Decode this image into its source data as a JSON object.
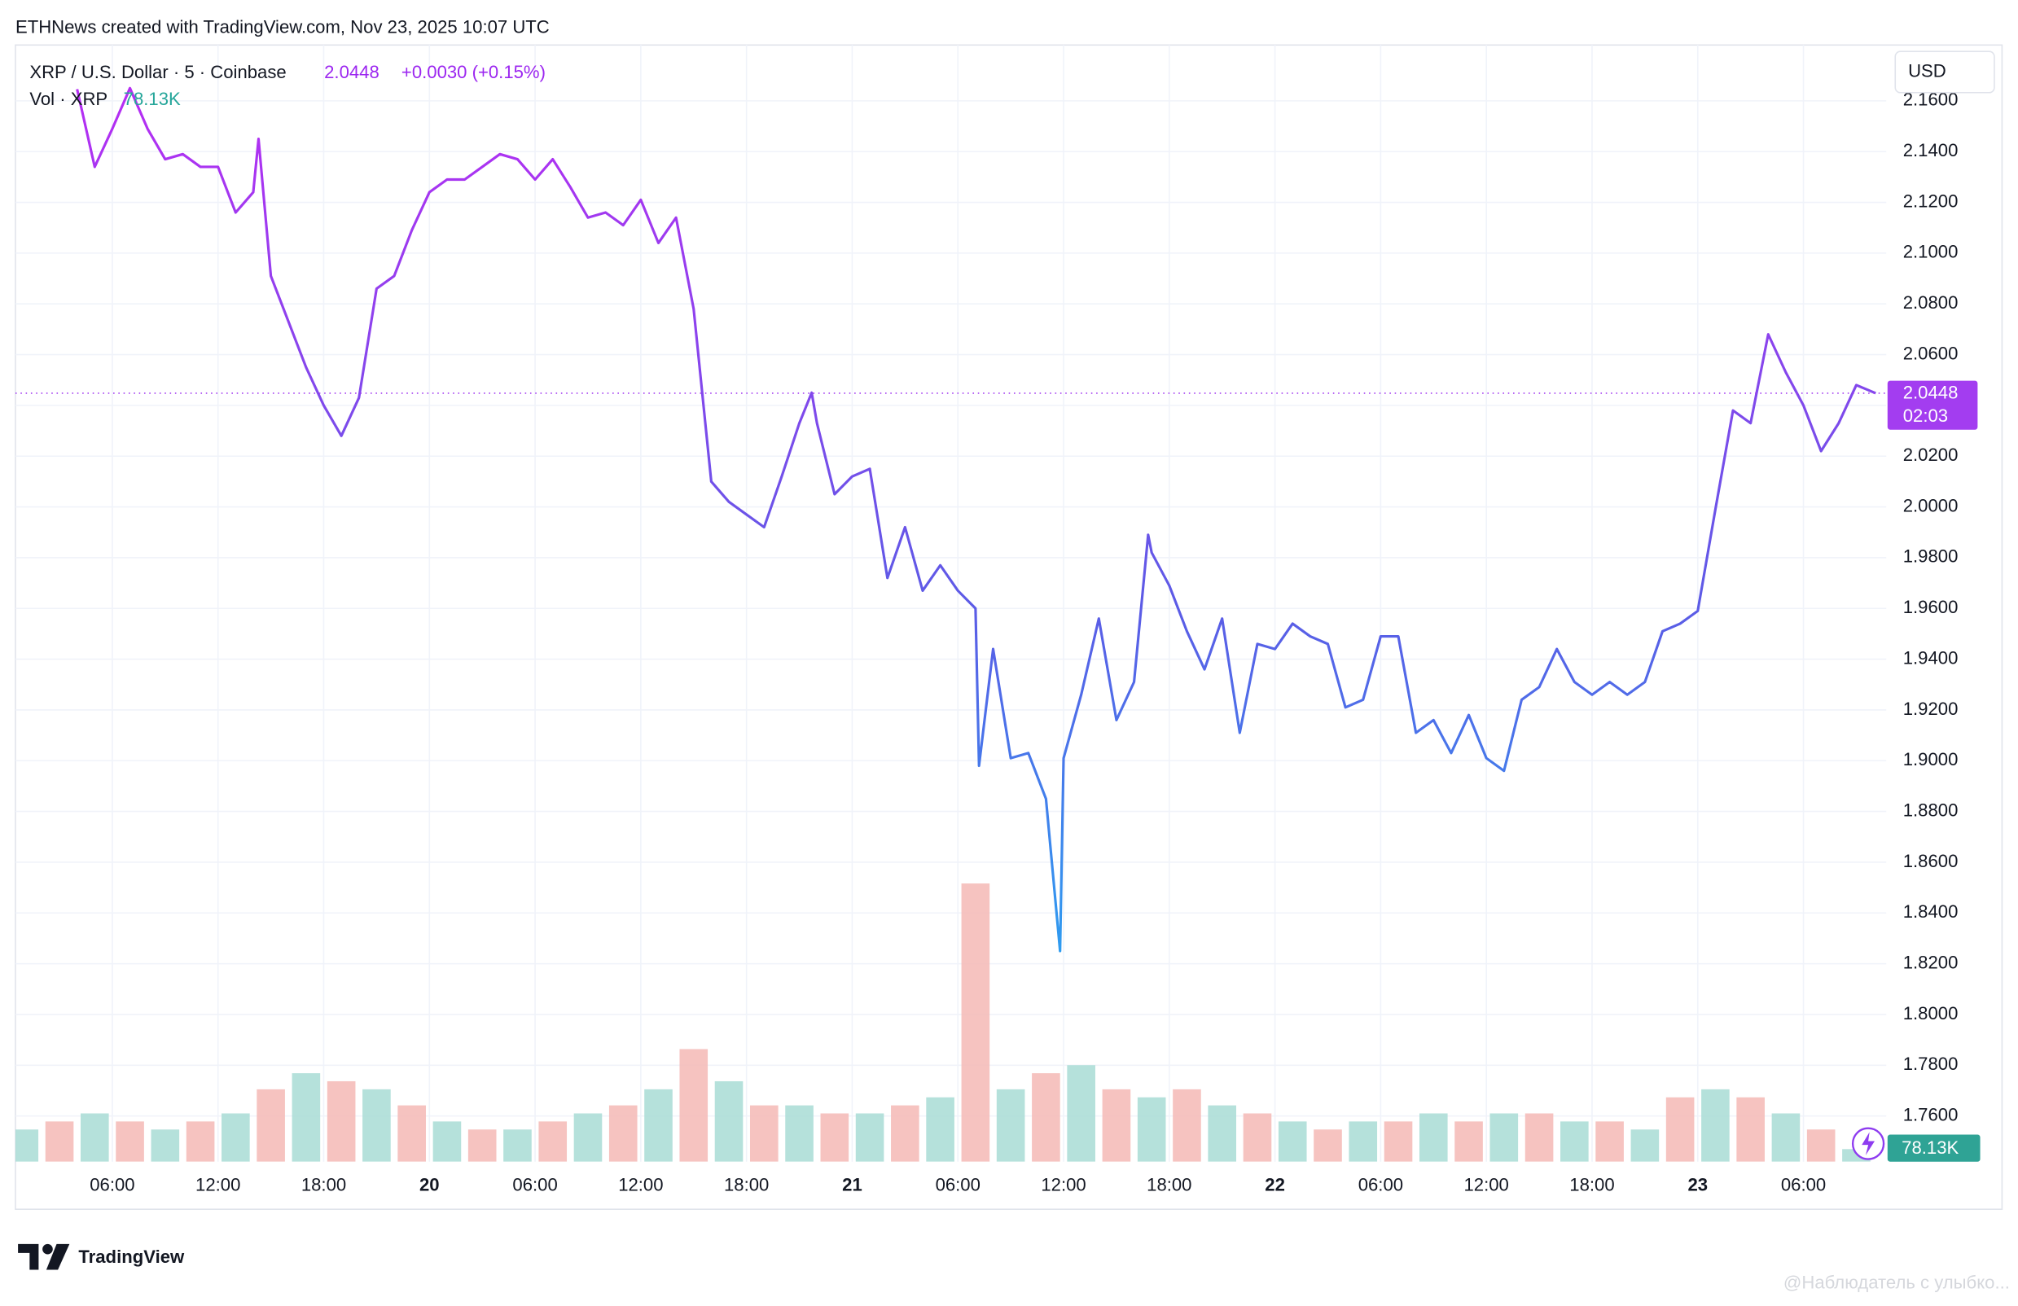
{
  "chart_data": {
    "type": "line",
    "header": "ETHNews created with TradingView.com, Nov 23, 2025 10:07 UTC",
    "price_display": "2.0448",
    "change": "+0.0030 (+0.15%)",
    "currency": "USD",
    "countdown": "02:03",
    "volume_display": "78.13K",
    "brand": "TradingView",
    "watermark": "@Наблюдатель с улыбко...",
    "last_price": 2.0448,
    "line_colors": [
      "#b52ef3",
      "#5b5ce6",
      "#2e9cf0"
    ],
    "series": [
      {
        "name": "XRP / U.S. Dollar · 5 · Coinbase",
        "x": [
          4,
          5,
          6,
          7,
          8,
          9,
          10,
          11,
          12,
          13,
          14,
          14.3,
          15,
          16,
          17,
          18,
          19,
          20,
          21,
          22,
          23,
          24,
          25,
          26,
          27,
          28,
          29,
          30,
          31,
          32,
          33,
          34,
          35,
          36,
          37,
          38,
          39,
          40,
          41,
          42,
          43,
          44,
          45,
          45.7,
          46,
          47,
          48,
          49,
          50,
          51,
          52,
          53,
          54,
          55,
          55.2,
          56,
          57,
          58,
          59,
          59.8,
          60,
          61,
          62,
          63,
          64,
          64.8,
          65,
          66,
          67,
          68,
          69,
          70,
          71,
          72,
          73,
          74,
          75,
          76,
          77,
          78,
          79,
          80,
          81,
          82,
          83,
          84,
          85,
          86,
          87,
          88,
          89,
          90,
          91,
          92,
          93,
          94,
          95,
          96,
          97,
          98,
          99,
          100,
          101,
          102,
          103,
          104,
          105,
          106.1
        ],
        "values": [
          2.1646,
          2.134,
          2.149,
          2.165,
          2.149,
          2.137,
          2.139,
          2.134,
          2.134,
          2.116,
          2.124,
          2.145,
          2.091,
          2.073,
          2.055,
          2.04,
          2.028,
          2.043,
          2.086,
          2.091,
          2.109,
          2.124,
          2.129,
          2.129,
          2.134,
          2.139,
          2.137,
          2.129,
          2.137,
          2.126,
          2.114,
          2.116,
          2.111,
          2.121,
          2.104,
          2.114,
          2.078,
          2.01,
          2.002,
          1.997,
          1.992,
          2.012,
          2.033,
          2.045,
          2.033,
          2.005,
          2.012,
          2.015,
          1.972,
          1.992,
          1.967,
          1.977,
          1.967,
          1.96,
          1.898,
          1.944,
          1.901,
          1.903,
          1.885,
          1.825,
          1.901,
          1.926,
          1.956,
          1.916,
          1.931,
          1.989,
          1.982,
          1.969,
          1.951,
          1.936,
          1.956,
          1.911,
          1.946,
          1.944,
          1.954,
          1.949,
          1.946,
          1.921,
          1.924,
          1.949,
          1.949,
          1.911,
          1.916,
          1.903,
          1.918,
          1.901,
          1.896,
          1.924,
          1.929,
          1.944,
          1.931,
          1.926,
          1.931,
          1.926,
          1.931,
          1.951,
          1.954,
          1.959,
          1.999,
          2.038,
          2.033,
          2.068,
          2.053,
          2.04,
          2.022,
          2.033,
          2.048,
          2.0448
        ]
      },
      {
        "name": "Vol · XRP",
        "axis": "volume",
        "up_color": "#f4b8b5",
        "down_color": "#a8dcd5",
        "x": [
          1,
          3,
          5,
          7,
          9,
          11,
          13,
          15,
          17,
          19,
          21,
          23,
          25,
          27,
          29,
          31,
          33,
          35,
          37,
          39,
          41,
          43,
          45,
          47,
          49,
          51,
          53,
          55,
          57,
          59,
          61,
          63,
          65,
          67,
          69,
          71,
          73,
          75,
          77,
          79,
          81,
          83,
          85,
          87,
          89,
          91,
          93,
          95,
          97,
          99,
          101,
          103,
          105
        ],
        "values": [
          200,
          250,
          300,
          250,
          200,
          250,
          300,
          450,
          550,
          500,
          450,
          350,
          250,
          200,
          200,
          250,
          300,
          350,
          450,
          700,
          500,
          350,
          350,
          300,
          300,
          350,
          400,
          1730,
          450,
          550,
          600,
          450,
          400,
          450,
          350,
          300,
          250,
          200,
          250,
          250,
          300,
          250,
          300,
          300,
          250,
          250,
          200,
          400,
          450,
          400,
          300,
          200,
          78.13
        ]
      }
    ],
    "volume_lim": [
      0,
      2000
    ],
    "xlim": [
      0.5,
      106.7
    ],
    "xticks": [
      {
        "value": 6,
        "label": "06:00"
      },
      {
        "value": 12,
        "label": "12:00"
      },
      {
        "value": 18,
        "label": "18:00"
      },
      {
        "value": 24,
        "label": "20"
      },
      {
        "value": 30,
        "label": "06:00"
      },
      {
        "value": 36,
        "label": "12:00"
      },
      {
        "value": 42,
        "label": "18:00"
      },
      {
        "value": 48,
        "label": "21"
      },
      {
        "value": 54,
        "label": "06:00"
      },
      {
        "value": 60,
        "label": "12:00"
      },
      {
        "value": 66,
        "label": "18:00"
      },
      {
        "value": 72,
        "label": "22"
      },
      {
        "value": 78,
        "label": "06:00"
      },
      {
        "value": 84,
        "label": "12:00"
      },
      {
        "value": 90,
        "label": "18:00"
      },
      {
        "value": 96,
        "label": "23"
      },
      {
        "value": 102,
        "label": "06:00"
      }
    ],
    "ylim": [
      1.742,
      2.182
    ],
    "yticks": [
      {
        "value": 1.76,
        "label": "1.7600"
      },
      {
        "value": 1.78,
        "label": "1.7800"
      },
      {
        "value": 1.8,
        "label": "1.8000"
      },
      {
        "value": 1.82,
        "label": "1.8200"
      },
      {
        "value": 1.84,
        "label": "1.8400"
      },
      {
        "value": 1.86,
        "label": "1.8600"
      },
      {
        "value": 1.88,
        "label": "1.8800"
      },
      {
        "value": 1.9,
        "label": "1.9000"
      },
      {
        "value": 1.92,
        "label": "1.9200"
      },
      {
        "value": 1.94,
        "label": "1.9400"
      },
      {
        "value": 1.96,
        "label": "1.9600"
      },
      {
        "value": 1.98,
        "label": "1.9800"
      },
      {
        "value": 2.0,
        "label": "2.0000"
      },
      {
        "value": 2.02,
        "label": "2.0200"
      },
      {
        "value": 2.04,
        "label": "2.0400"
      },
      {
        "value": 2.06,
        "label": "2.0600"
      },
      {
        "value": 2.08,
        "label": "2.0800"
      },
      {
        "value": 2.1,
        "label": "2.1000"
      },
      {
        "value": 2.12,
        "label": "2.1200"
      },
      {
        "value": 2.14,
        "label": "2.1400"
      },
      {
        "value": 2.16,
        "label": "2.1600"
      }
    ],
    "grid": true
  }
}
